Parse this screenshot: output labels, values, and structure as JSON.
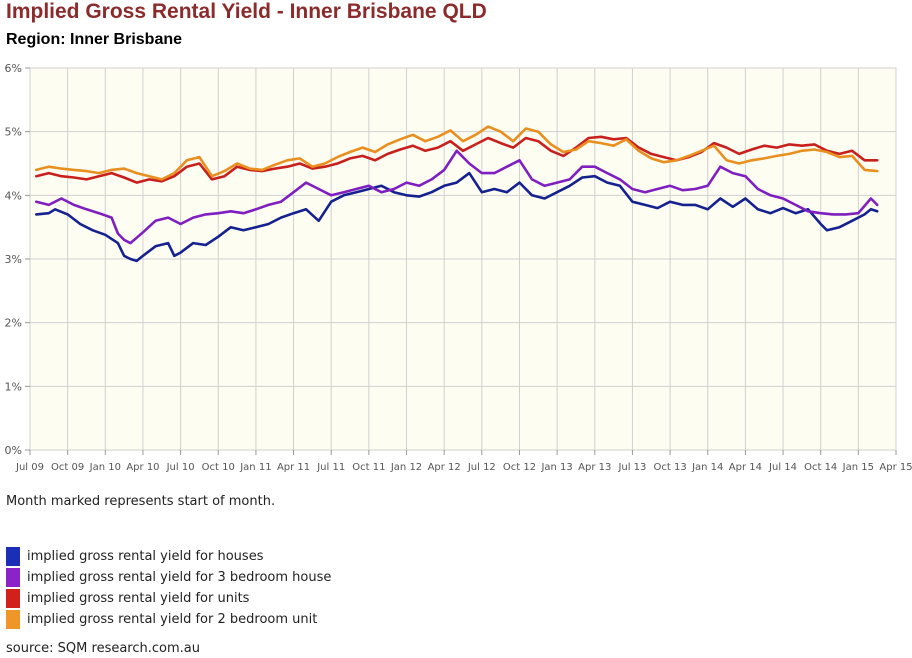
{
  "page": {
    "title": "Implied Gross Rental Yield - Inner Brisbane QLD",
    "subtitle": "Region: Inner Brisbane",
    "note": "Month marked represents start of month.",
    "source": "source: SQM research.com.au"
  },
  "chart_data": {
    "type": "line",
    "title": "Implied Gross Rental Yield - Inner Brisbane QLD",
    "subtitle": "Region: Inner Brisbane",
    "xlabel": "",
    "ylabel": "",
    "grid": true,
    "legend_position": "bottom",
    "ylim": [
      0,
      6
    ],
    "yticks": [
      0,
      1,
      2,
      3,
      4,
      5,
      6
    ],
    "ytick_labels": [
      "0%",
      "1%",
      "2%",
      "3%",
      "4%",
      "5%",
      "6%"
    ],
    "xlim": [
      0,
      69
    ],
    "xtick_positions": [
      0,
      3,
      6,
      9,
      12,
      15,
      18,
      21,
      24,
      27,
      30,
      33,
      36,
      39,
      42,
      45,
      48,
      51,
      54,
      57,
      60,
      63,
      66,
      69
    ],
    "xtick_labels": [
      "Jul 09",
      "Oct 09",
      "Jan 10",
      "Apr 10",
      "Jul 10",
      "Oct 10",
      "Jan 11",
      "Apr 11",
      "Jul 11",
      "Oct 11",
      "Jan 12",
      "Apr 12",
      "Jul 12",
      "Oct 12",
      "Jan 13",
      "Apr 13",
      "Jul 13",
      "Oct 13",
      "Jan 14",
      "Apr 14",
      "Jul 14",
      "Oct 14",
      "Jan 15",
      "Apr 15"
    ],
    "series": [
      {
        "name": "implied gross rental yield for houses",
        "color": "#14218f",
        "points": [
          [
            0.5,
            3.7
          ],
          [
            1.5,
            3.72
          ],
          [
            2.0,
            3.78
          ],
          [
            3.0,
            3.7
          ],
          [
            4.0,
            3.55
          ],
          [
            5.0,
            3.45
          ],
          [
            6.0,
            3.38
          ],
          [
            7.0,
            3.25
          ],
          [
            7.5,
            3.05
          ],
          [
            8.0,
            3.0
          ],
          [
            8.5,
            2.97
          ],
          [
            9.0,
            3.05
          ],
          [
            10.0,
            3.2
          ],
          [
            11.0,
            3.25
          ],
          [
            11.5,
            3.05
          ],
          [
            12.0,
            3.1
          ],
          [
            13.0,
            3.25
          ],
          [
            14.0,
            3.22
          ],
          [
            15.0,
            3.35
          ],
          [
            16.0,
            3.5
          ],
          [
            17.0,
            3.45
          ],
          [
            18.0,
            3.5
          ],
          [
            19.0,
            3.55
          ],
          [
            20.0,
            3.65
          ],
          [
            21.0,
            3.72
          ],
          [
            22.0,
            3.78
          ],
          [
            23.0,
            3.6
          ],
          [
            24.0,
            3.9
          ],
          [
            25.0,
            4.0
          ],
          [
            26.0,
            4.05
          ],
          [
            27.0,
            4.1
          ],
          [
            28.0,
            4.15
          ],
          [
            29.0,
            4.05
          ],
          [
            30.0,
            4.0
          ],
          [
            31.0,
            3.98
          ],
          [
            32.0,
            4.05
          ],
          [
            33.0,
            4.15
          ],
          [
            34.0,
            4.2
          ],
          [
            35.0,
            4.35
          ],
          [
            36.0,
            4.05
          ],
          [
            37.0,
            4.1
          ],
          [
            38.0,
            4.05
          ],
          [
            39.0,
            4.2
          ],
          [
            40.0,
            4.0
          ],
          [
            41.0,
            3.95
          ],
          [
            42.0,
            4.05
          ],
          [
            43.0,
            4.15
          ],
          [
            44.0,
            4.28
          ],
          [
            45.0,
            4.3
          ],
          [
            46.0,
            4.2
          ],
          [
            47.0,
            4.15
          ],
          [
            48.0,
            3.9
          ],
          [
            49.0,
            3.85
          ],
          [
            50.0,
            3.8
          ],
          [
            51.0,
            3.9
          ],
          [
            52.0,
            3.85
          ],
          [
            53.0,
            3.85
          ],
          [
            54.0,
            3.78
          ],
          [
            55.0,
            3.95
          ],
          [
            56.0,
            3.82
          ],
          [
            57.0,
            3.95
          ],
          [
            58.0,
            3.78
          ],
          [
            59.0,
            3.72
          ],
          [
            60.0,
            3.8
          ],
          [
            61.0,
            3.72
          ],
          [
            62.0,
            3.78
          ],
          [
            63.0,
            3.55
          ],
          [
            63.5,
            3.45
          ],
          [
            64.5,
            3.5
          ],
          [
            65.5,
            3.6
          ],
          [
            66.5,
            3.7
          ],
          [
            67.0,
            3.78
          ],
          [
            67.5,
            3.75
          ]
        ]
      },
      {
        "name": "implied gross rental yield for 3 bedroom house",
        "color": "#7f1fbf",
        "points": [
          [
            0.5,
            3.9
          ],
          [
            1.5,
            3.85
          ],
          [
            2.5,
            3.95
          ],
          [
            3.5,
            3.85
          ],
          [
            4.5,
            3.78
          ],
          [
            5.5,
            3.72
          ],
          [
            6.5,
            3.65
          ],
          [
            7.0,
            3.4
          ],
          [
            7.5,
            3.3
          ],
          [
            8.0,
            3.25
          ],
          [
            9.0,
            3.42
          ],
          [
            10.0,
            3.6
          ],
          [
            11.0,
            3.65
          ],
          [
            12.0,
            3.55
          ],
          [
            13.0,
            3.65
          ],
          [
            14.0,
            3.7
          ],
          [
            15.0,
            3.72
          ],
          [
            16.0,
            3.75
          ],
          [
            17.0,
            3.72
          ],
          [
            18.0,
            3.78
          ],
          [
            19.0,
            3.85
          ],
          [
            20.0,
            3.9
          ],
          [
            21.0,
            4.05
          ],
          [
            22.0,
            4.2
          ],
          [
            23.0,
            4.1
          ],
          [
            24.0,
            4.0
          ],
          [
            25.0,
            4.05
          ],
          [
            26.0,
            4.1
          ],
          [
            27.0,
            4.15
          ],
          [
            28.0,
            4.05
          ],
          [
            29.0,
            4.1
          ],
          [
            30.0,
            4.2
          ],
          [
            31.0,
            4.15
          ],
          [
            32.0,
            4.25
          ],
          [
            33.0,
            4.4
          ],
          [
            34.0,
            4.7
          ],
          [
            35.0,
            4.5
          ],
          [
            36.0,
            4.35
          ],
          [
            37.0,
            4.35
          ],
          [
            38.0,
            4.45
          ],
          [
            39.0,
            4.55
          ],
          [
            40.0,
            4.25
          ],
          [
            41.0,
            4.15
          ],
          [
            42.0,
            4.2
          ],
          [
            43.0,
            4.25
          ],
          [
            44.0,
            4.45
          ],
          [
            45.0,
            4.45
          ],
          [
            46.0,
            4.35
          ],
          [
            47.0,
            4.25
          ],
          [
            48.0,
            4.1
          ],
          [
            49.0,
            4.05
          ],
          [
            50.0,
            4.1
          ],
          [
            51.0,
            4.15
          ],
          [
            52.0,
            4.08
          ],
          [
            53.0,
            4.1
          ],
          [
            54.0,
            4.15
          ],
          [
            55.0,
            4.45
          ],
          [
            56.0,
            4.35
          ],
          [
            57.0,
            4.3
          ],
          [
            58.0,
            4.1
          ],
          [
            59.0,
            4.0
          ],
          [
            60.0,
            3.95
          ],
          [
            61.0,
            3.85
          ],
          [
            62.0,
            3.75
          ],
          [
            63.0,
            3.72
          ],
          [
            64.0,
            3.7
          ],
          [
            65.0,
            3.7
          ],
          [
            66.0,
            3.72
          ],
          [
            67.0,
            3.95
          ],
          [
            67.5,
            3.85
          ]
        ]
      },
      {
        "name": "implied gross rental yield for units",
        "color": "#c8201c",
        "points": [
          [
            0.5,
            4.3
          ],
          [
            1.5,
            4.35
          ],
          [
            2.5,
            4.3
          ],
          [
            3.5,
            4.28
          ],
          [
            4.5,
            4.25
          ],
          [
            5.5,
            4.3
          ],
          [
            6.5,
            4.35
          ],
          [
            7.5,
            4.28
          ],
          [
            8.5,
            4.2
          ],
          [
            9.5,
            4.25
          ],
          [
            10.5,
            4.22
          ],
          [
            11.5,
            4.3
          ],
          [
            12.5,
            4.45
          ],
          [
            13.5,
            4.5
          ],
          [
            14.5,
            4.25
          ],
          [
            15.5,
            4.3
          ],
          [
            16.5,
            4.45
          ],
          [
            17.5,
            4.4
          ],
          [
            18.5,
            4.38
          ],
          [
            19.5,
            4.42
          ],
          [
            20.5,
            4.45
          ],
          [
            21.5,
            4.5
          ],
          [
            22.5,
            4.42
          ],
          [
            23.5,
            4.45
          ],
          [
            24.5,
            4.5
          ],
          [
            25.5,
            4.58
          ],
          [
            26.5,
            4.62
          ],
          [
            27.5,
            4.55
          ],
          [
            28.5,
            4.65
          ],
          [
            29.5,
            4.72
          ],
          [
            30.5,
            4.78
          ],
          [
            31.5,
            4.7
          ],
          [
            32.5,
            4.75
          ],
          [
            33.5,
            4.85
          ],
          [
            34.5,
            4.7
          ],
          [
            35.5,
            4.8
          ],
          [
            36.5,
            4.9
          ],
          [
            37.5,
            4.82
          ],
          [
            38.5,
            4.75
          ],
          [
            39.5,
            4.9
          ],
          [
            40.5,
            4.85
          ],
          [
            41.5,
            4.7
          ],
          [
            42.5,
            4.62
          ],
          [
            43.5,
            4.75
          ],
          [
            44.5,
            4.9
          ],
          [
            45.5,
            4.92
          ],
          [
            46.5,
            4.88
          ],
          [
            47.5,
            4.9
          ],
          [
            48.5,
            4.75
          ],
          [
            49.5,
            4.65
          ],
          [
            50.5,
            4.6
          ],
          [
            51.5,
            4.55
          ],
          [
            52.5,
            4.6
          ],
          [
            53.5,
            4.68
          ],
          [
            54.5,
            4.82
          ],
          [
            55.5,
            4.75
          ],
          [
            56.5,
            4.65
          ],
          [
            57.5,
            4.72
          ],
          [
            58.5,
            4.78
          ],
          [
            59.5,
            4.75
          ],
          [
            60.5,
            4.8
          ],
          [
            61.5,
            4.78
          ],
          [
            62.5,
            4.8
          ],
          [
            63.5,
            4.7
          ],
          [
            64.5,
            4.65
          ],
          [
            65.5,
            4.7
          ],
          [
            66.5,
            4.55
          ],
          [
            67.5,
            4.55
          ]
        ]
      },
      {
        "name": "implied gross rental yield for 2 bedroom unit",
        "color": "#e88f1f",
        "points": [
          [
            0.5,
            4.4
          ],
          [
            1.5,
            4.45
          ],
          [
            2.5,
            4.42
          ],
          [
            3.5,
            4.4
          ],
          [
            4.5,
            4.38
          ],
          [
            5.5,
            4.35
          ],
          [
            6.5,
            4.4
          ],
          [
            7.5,
            4.42
          ],
          [
            8.5,
            4.35
          ],
          [
            9.5,
            4.3
          ],
          [
            10.5,
            4.25
          ],
          [
            11.5,
            4.35
          ],
          [
            12.5,
            4.55
          ],
          [
            13.5,
            4.6
          ],
          [
            14.5,
            4.3
          ],
          [
            15.5,
            4.38
          ],
          [
            16.5,
            4.5
          ],
          [
            17.5,
            4.42
          ],
          [
            18.5,
            4.4
          ],
          [
            19.5,
            4.48
          ],
          [
            20.5,
            4.55
          ],
          [
            21.5,
            4.58
          ],
          [
            22.5,
            4.45
          ],
          [
            23.5,
            4.5
          ],
          [
            24.5,
            4.6
          ],
          [
            25.5,
            4.68
          ],
          [
            26.5,
            4.75
          ],
          [
            27.5,
            4.68
          ],
          [
            28.5,
            4.8
          ],
          [
            29.5,
            4.88
          ],
          [
            30.5,
            4.95
          ],
          [
            31.5,
            4.85
          ],
          [
            32.5,
            4.92
          ],
          [
            33.5,
            5.02
          ],
          [
            34.5,
            4.85
          ],
          [
            35.5,
            4.95
          ],
          [
            36.5,
            5.08
          ],
          [
            37.5,
            5.0
          ],
          [
            38.5,
            4.85
          ],
          [
            39.5,
            5.05
          ],
          [
            40.5,
            5.0
          ],
          [
            41.5,
            4.8
          ],
          [
            42.5,
            4.68
          ],
          [
            43.5,
            4.72
          ],
          [
            44.5,
            4.85
          ],
          [
            45.5,
            4.82
          ],
          [
            46.5,
            4.78
          ],
          [
            47.5,
            4.88
          ],
          [
            48.5,
            4.7
          ],
          [
            49.5,
            4.58
          ],
          [
            50.5,
            4.52
          ],
          [
            51.5,
            4.55
          ],
          [
            52.5,
            4.62
          ],
          [
            53.5,
            4.7
          ],
          [
            54.5,
            4.78
          ],
          [
            55.5,
            4.55
          ],
          [
            56.5,
            4.5
          ],
          [
            57.5,
            4.55
          ],
          [
            58.5,
            4.58
          ],
          [
            59.5,
            4.62
          ],
          [
            60.5,
            4.65
          ],
          [
            61.5,
            4.7
          ],
          [
            62.5,
            4.72
          ],
          [
            63.5,
            4.68
          ],
          [
            64.5,
            4.6
          ],
          [
            65.5,
            4.62
          ],
          [
            66.5,
            4.4
          ],
          [
            67.5,
            4.38
          ]
        ]
      }
    ]
  }
}
